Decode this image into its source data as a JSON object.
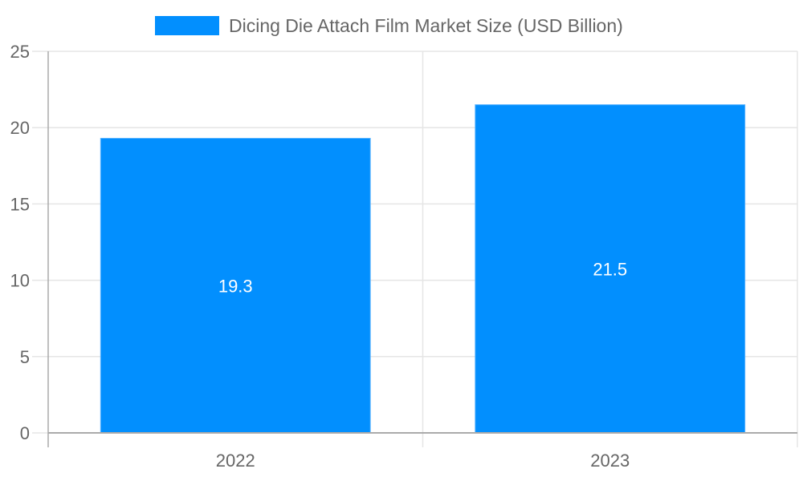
{
  "legend": {
    "label": "Dicing Die Attach Film Market Size (USD Billion)",
    "color": "#028ffe"
  },
  "colors": {
    "bar": "#028ffe",
    "grid": "#e5e5e5",
    "axis": "#aaaaaa",
    "tick_text": "#666666",
    "bar_label": "#ffffff"
  },
  "chart_data": {
    "type": "bar",
    "title": "",
    "categories": [
      "2022",
      "2023"
    ],
    "series": [
      {
        "name": "Dicing Die Attach Film Market Size (USD Billion)",
        "values": [
          19.3,
          21.5
        ]
      }
    ],
    "values": [
      19.3,
      21.5
    ],
    "data_labels": [
      "19.3",
      "21.5"
    ],
    "xlabel": "",
    "ylabel": "",
    "ylim": [
      0,
      25
    ],
    "yticks": [
      0,
      5,
      10,
      15,
      20,
      25
    ],
    "grid": true,
    "legend_position": "top"
  }
}
